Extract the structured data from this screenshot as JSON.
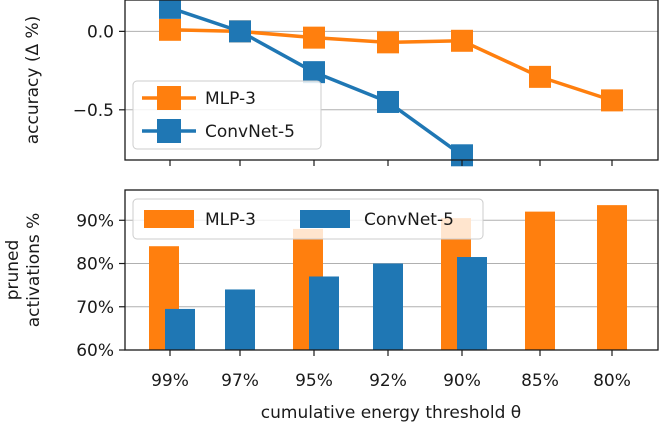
{
  "chart_data": [
    {
      "type": "line",
      "x_label": "cumulative energy threshold θ",
      "ylabel": "accuracy (Δ %)",
      "categories": [
        "99%",
        "97%",
        "95%",
        "92%",
        "90%",
        "85%",
        "80%"
      ],
      "ylim": [
        -0.82,
        0.2
      ],
      "yticks": [
        0.0,
        -0.5
      ],
      "ytick_labels": [
        "0.0",
        "−0.5"
      ],
      "grid": true,
      "legend_position": "lower-left",
      "series": [
        {
          "name": "MLP-3",
          "color": "#ff7f0e",
          "values": [
            0.01,
            0.0,
            -0.04,
            -0.07,
            -0.06,
            -0.29,
            -0.44
          ]
        },
        {
          "name": "ConvNet-5",
          "color": "#1f77b4",
          "values": [
            0.15,
            0.0,
            -0.26,
            -0.45,
            -0.79,
            null,
            null
          ]
        }
      ]
    },
    {
      "type": "bar",
      "xlabel": "cumulative energy threshold θ",
      "ylabel": "pruned activations %",
      "categories": [
        "99%",
        "97%",
        "95%",
        "92%",
        "90%",
        "85%",
        "80%"
      ],
      "ylim": [
        60,
        97
      ],
      "yticks": [
        60,
        70,
        80,
        90
      ],
      "ytick_labels": [
        "60%",
        "70%",
        "80%",
        "90%"
      ],
      "grid": true,
      "legend_position": "top-left",
      "series": [
        {
          "name": "MLP-3",
          "color": "#ff7f0e",
          "values": [
            84,
            null,
            88,
            null,
            90.5,
            92,
            93.5
          ]
        },
        {
          "name": "ConvNet-5",
          "color": "#1f77b4",
          "values": [
            69.5,
            74,
            77,
            80,
            81.5,
            null,
            null
          ]
        }
      ]
    }
  ]
}
